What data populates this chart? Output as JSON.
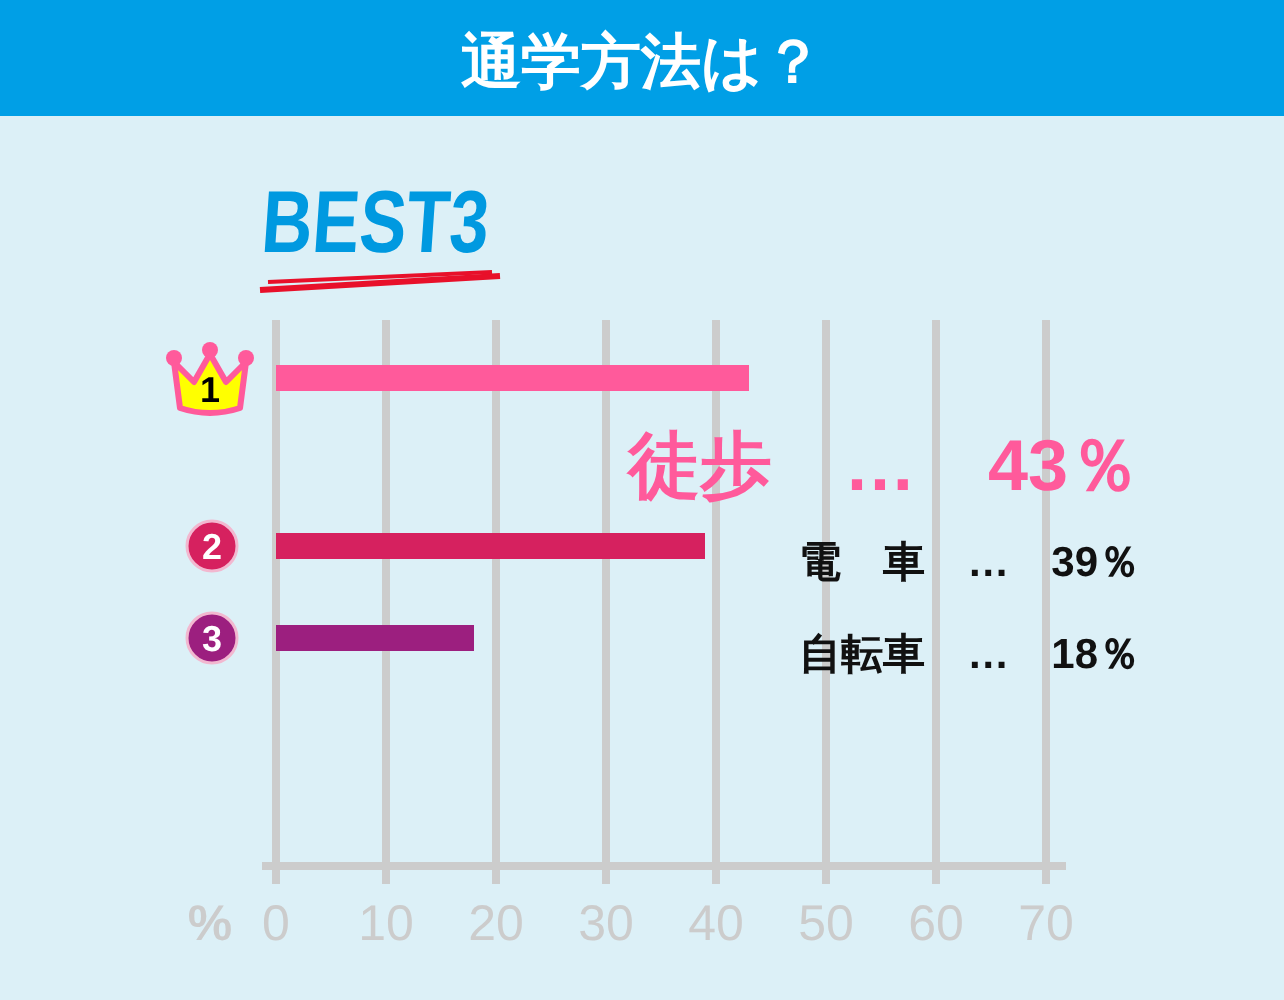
{
  "chart_data": {
    "type": "bar",
    "title": "通学方法は？",
    "subtitle": "BEST3",
    "orientation": "horizontal",
    "categories": [
      "1",
      "2",
      "3"
    ],
    "values": [
      43,
      39,
      18
    ],
    "colors": [
      "#ff5a9b",
      "#d6215f",
      "#9c1f7f"
    ],
    "annotations": [
      "徒歩　…　43％",
      "電　車　…　39％",
      "自転車　…　18％"
    ],
    "xlabel": "%",
    "xlim": [
      0,
      70
    ],
    "xticks": [
      0,
      10,
      20,
      30,
      40,
      50,
      60,
      70
    ],
    "grid": "x"
  }
}
